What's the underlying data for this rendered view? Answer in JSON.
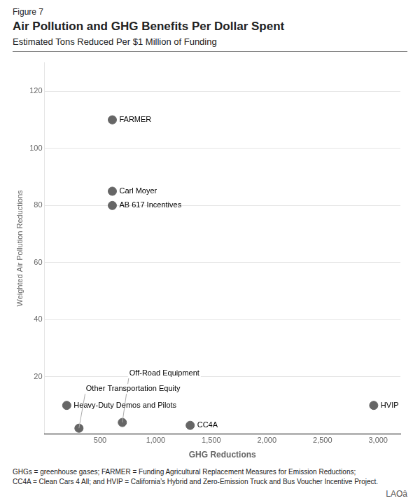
{
  "chart_data": {
    "type": "scatter",
    "figure_label": "Figure 7",
    "title": "Air Pollution and GHG Benefits Per Dollar Spent",
    "subtitle": "Estimated Tons Reduced Per $1 Million of Funding",
    "x_label": "GHG Reductions",
    "y_label": "Weighted Air Pollution Reductions",
    "labels": [
      "FARMER",
      "Carl Moyer",
      "AB 617 Incentives",
      "Heavy-Duty Demos and Pilots",
      "Other Transportation Equity",
      "Off-Road Equipment",
      "CC4A",
      "HVIP"
    ],
    "x": [
      610,
      610,
      610,
      200,
      310,
      700,
      1310,
      2960
    ],
    "values": [
      110,
      85,
      80,
      10,
      2,
      4,
      3,
      10
    ],
    "color": "#666666",
    "xlim": [
      0,
      3200
    ],
    "ylim": [
      0,
      130
    ],
    "xticks": [
      500,
      1000,
      1500,
      2000,
      2500,
      3000
    ],
    "yticks": [
      20,
      40,
      60,
      80,
      100,
      120
    ],
    "grid": "y",
    "footnotes": [
      "GHGs = greenhouse gases; FARMER = Funding Agricultural Replacement Measures for Emission Reductions;",
      "CC4A = Clean Cars 4 All; and HVIP = California’s Hybrid and Zero-Emission Truck and Bus Voucher Incentive Project."
    ],
    "logo": "LAOâ"
  }
}
